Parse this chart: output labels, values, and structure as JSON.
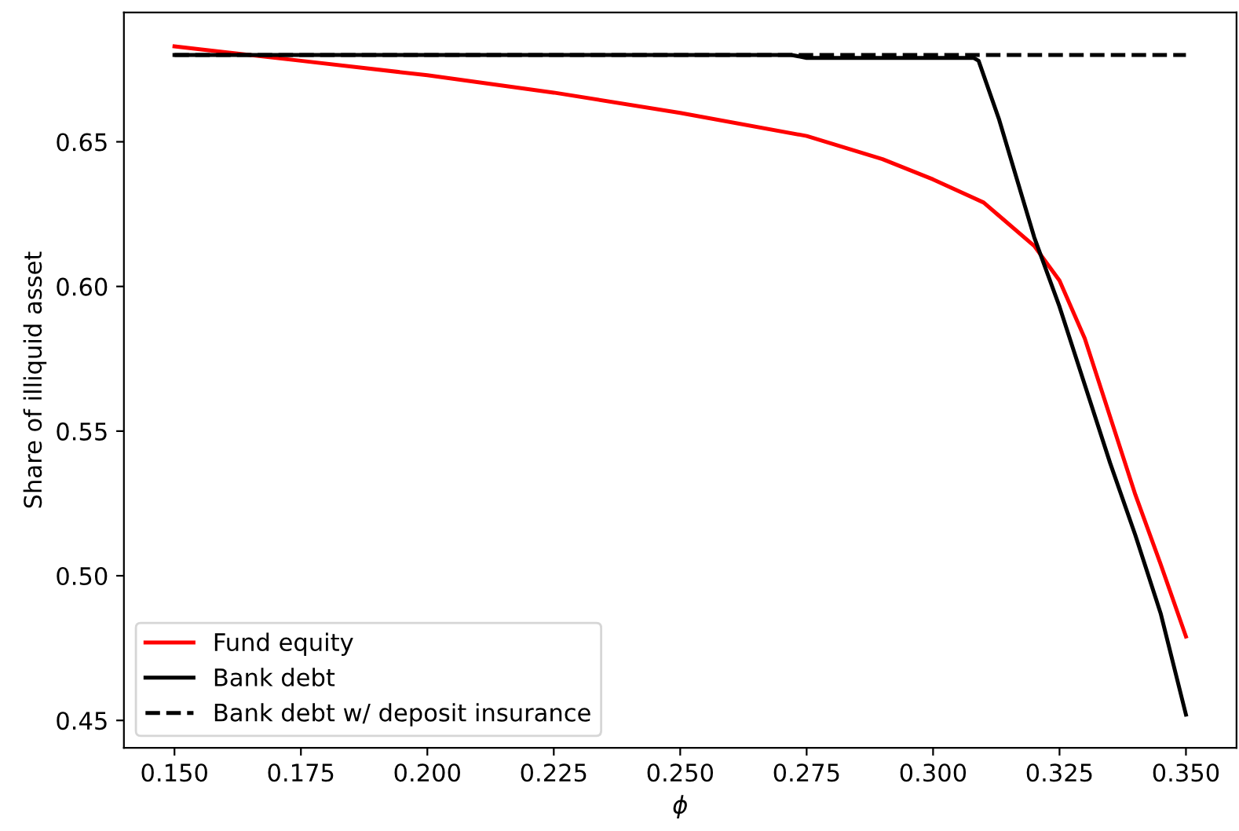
{
  "chart_data": {
    "type": "line",
    "xlabel": "ϕ",
    "ylabel": "Share of illiquid asset",
    "xlim": [
      0.14,
      0.36
    ],
    "ylim": [
      0.4405,
      0.6947
    ],
    "xticks": [
      {
        "value": 0.15,
        "label": "0.150"
      },
      {
        "value": 0.175,
        "label": "0.175"
      },
      {
        "value": 0.2,
        "label": "0.200"
      },
      {
        "value": 0.225,
        "label": "0.225"
      },
      {
        "value": 0.25,
        "label": "0.250"
      },
      {
        "value": 0.275,
        "label": "0.275"
      },
      {
        "value": 0.3,
        "label": "0.300"
      },
      {
        "value": 0.325,
        "label": "0.325"
      },
      {
        "value": 0.35,
        "label": "0.350"
      }
    ],
    "yticks": [
      {
        "value": 0.45,
        "label": "0.45"
      },
      {
        "value": 0.5,
        "label": "0.50"
      },
      {
        "value": 0.55,
        "label": "0.55"
      },
      {
        "value": 0.6,
        "label": "0.60"
      },
      {
        "value": 0.65,
        "label": "0.65"
      }
    ],
    "legend": "bottom left",
    "grid": false,
    "series": [
      {
        "name": "Fund equity",
        "color": "#ff0000",
        "line_style": "solid",
        "x": [
          0.15,
          0.155,
          0.175,
          0.2,
          0.225,
          0.25,
          0.275,
          0.29,
          0.3,
          0.31,
          0.32,
          0.325,
          0.33,
          0.335,
          0.34,
          0.345,
          0.35
        ],
        "values": [
          0.683,
          0.682,
          0.678,
          0.673,
          0.667,
          0.66,
          0.652,
          0.644,
          0.637,
          0.629,
          0.614,
          0.602,
          0.582,
          0.555,
          0.528,
          0.504,
          0.479
        ]
      },
      {
        "name": "Bank debt",
        "color": "#000000",
        "line_style": "solid",
        "x": [
          0.15,
          0.272,
          0.275,
          0.308,
          0.309,
          0.313,
          0.32,
          0.325,
          0.33,
          0.335,
          0.34,
          0.345,
          0.35
        ],
        "values": [
          0.68,
          0.68,
          0.679,
          0.679,
          0.678,
          0.658,
          0.617,
          0.593,
          0.566,
          0.539,
          0.514,
          0.487,
          0.452
        ]
      },
      {
        "name": "Bank debt w/ deposit insurance",
        "color": "#000000",
        "line_style": "dashed",
        "x": [
          0.15,
          0.35
        ],
        "values": [
          0.68,
          0.68
        ]
      }
    ]
  }
}
